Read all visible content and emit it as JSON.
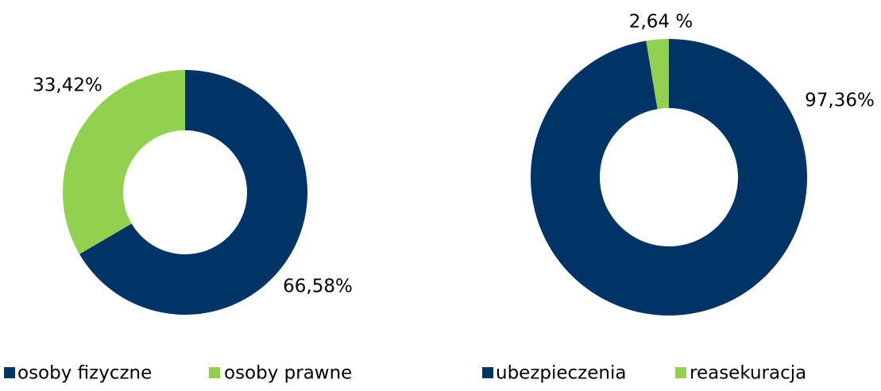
{
  "chart_data": [
    {
      "type": "donut",
      "categories": [
        "osoby fizyczne",
        "osoby prawne"
      ],
      "values": [
        66.58,
        33.42
      ],
      "value_labels": [
        "66,58%",
        "33,42%"
      ],
      "colors": [
        "#003466",
        "#92d050"
      ],
      "legend": "bottom"
    },
    {
      "type": "donut",
      "categories": [
        "ubezpieczenia",
        "reasekuracja"
      ],
      "values": [
        97.36,
        2.64
      ],
      "value_labels": [
        "97,36%",
        "2,64 %"
      ],
      "colors": [
        "#003466",
        "#92d050"
      ],
      "legend": "bottom"
    }
  ]
}
